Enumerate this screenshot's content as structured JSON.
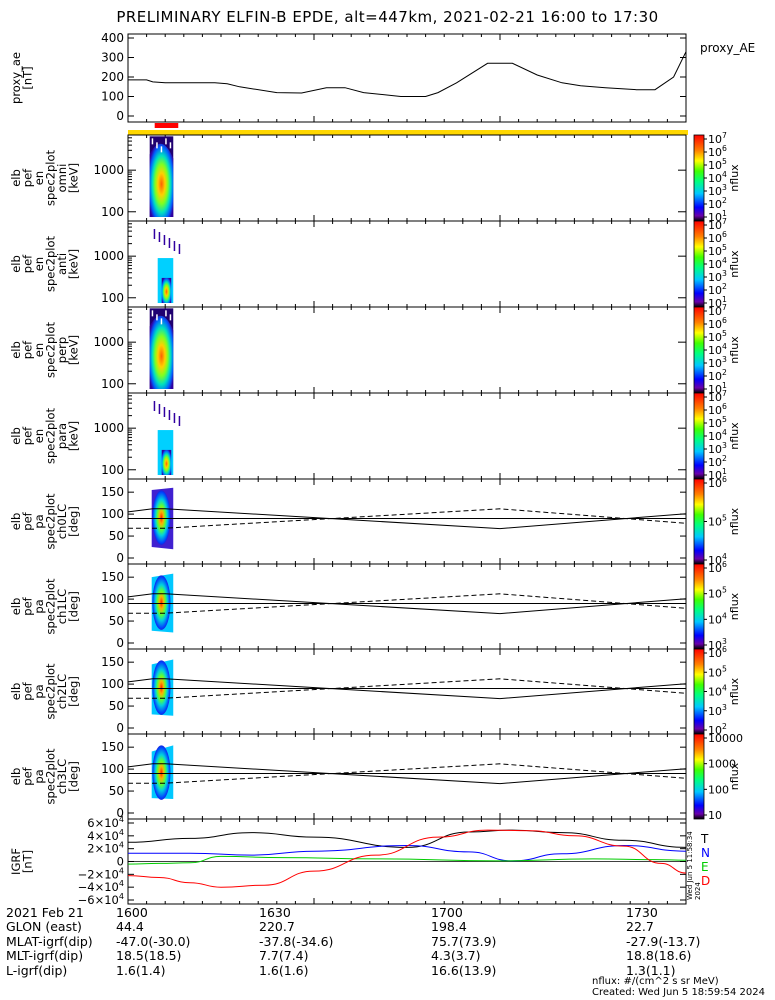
{
  "title": "PRELIMINARY ELFIN-B EPDE, alt=447km, 2021-02-21 16:00 to 17:30",
  "colors": {
    "yellow_bar": "#ffd700",
    "red_bar": "#ff0000",
    "T": "#000000",
    "N": "#0000ff",
    "E": "#00cc00",
    "D": "#ff0000"
  },
  "panels": [
    {
      "name": "proxy_ae",
      "ylabel": [
        "proxy_ae",
        "[nT]"
      ],
      "right_label": "proxy_AE"
    },
    {
      "name": "omni",
      "ylabel": [
        "elb",
        "pef",
        "en",
        "spec2plot",
        "omni",
        "[keV]"
      ],
      "cbar_label": "nflux"
    },
    {
      "name": "anti",
      "ylabel": [
        "elb",
        "pef",
        "en",
        "spec2plot",
        "anti",
        "[keV]"
      ],
      "cbar_label": "nflux"
    },
    {
      "name": "perp",
      "ylabel": [
        "elb",
        "pef",
        "en",
        "spec2plot",
        "perp",
        "[keV]"
      ],
      "cbar_label": "nflux"
    },
    {
      "name": "para",
      "ylabel": [
        "elb",
        "pef",
        "en",
        "spec2plot",
        "para",
        "[keV]"
      ],
      "cbar_label": "nflux"
    },
    {
      "name": "ch0LC",
      "ylabel": [
        "elb",
        "pef",
        "pa",
        "spec2plot",
        "ch0LC",
        "[deg]"
      ],
      "cbar_label": "nflux"
    },
    {
      "name": "ch1LC",
      "ylabel": [
        "elb",
        "pef",
        "pa",
        "spec2plot",
        "ch1LC",
        "[deg]"
      ],
      "cbar_label": "nflux"
    },
    {
      "name": "ch2LC",
      "ylabel": [
        "elb",
        "pef",
        "pa",
        "spec2plot",
        "ch2LC",
        "[deg]"
      ],
      "cbar_label": "nflux"
    },
    {
      "name": "ch3LC",
      "ylabel": [
        "elb",
        "pef",
        "pa",
        "spec2plot",
        "ch3LC",
        "[deg]"
      ],
      "cbar_label": "nflux"
    },
    {
      "name": "igrf",
      "ylabel": [
        "IGRF",
        "[nT]"
      ],
      "legend": [
        "T",
        "N",
        "E",
        "D"
      ]
    }
  ],
  "chart_data": {
    "type": "line",
    "x_range_min": [
      0,
      90
    ],
    "x_ticks_min": [
      0,
      30,
      60,
      90
    ],
    "proxy_ae": {
      "ylim": [
        0,
        400
      ],
      "yticks": [
        "0",
        "100",
        "200",
        "300",
        "400"
      ],
      "x": [
        0,
        3,
        4,
        6,
        10,
        14,
        16,
        18,
        24,
        28,
        32,
        35,
        38,
        44,
        48,
        50,
        53,
        58,
        62,
        66,
        70,
        73,
        77,
        82,
        85,
        88,
        90
      ],
      "y": [
        185,
        185,
        175,
        170,
        170,
        170,
        165,
        150,
        120,
        118,
        145,
        145,
        120,
        100,
        100,
        120,
        170,
        270,
        270,
        210,
        170,
        155,
        145,
        135,
        135,
        200,
        330
      ]
    },
    "energy_spectrograms": {
      "ylim_keV": [
        60,
        7000
      ],
      "yticks": [
        "100",
        "1000"
      ],
      "omni_cbar": {
        "ticks": [
          "10^1",
          "10^2",
          "10^3",
          "10^4",
          "10^5",
          "10^6",
          "10^7"
        ]
      },
      "anti_cbar": {
        "ticks": [
          "10^1",
          "10^2",
          "10^3",
          "10^4",
          "10^5",
          "10^6",
          "10^7"
        ]
      },
      "perp_cbar": {
        "ticks": [
          "10^1",
          "10^2",
          "10^3",
          "10^4",
          "10^5",
          "10^6",
          "10^7"
        ]
      },
      "para_cbar": {
        "ticks": [
          "10^1",
          "10^2",
          "10^3",
          "10^4",
          "10^5",
          "10^6",
          "10^7"
        ]
      },
      "data_interval_min": [
        3.5,
        7.3
      ]
    },
    "pitch_angle_spectrograms": {
      "ylim_deg": [
        0,
        180
      ],
      "yticks": [
        "0",
        "50",
        "100",
        "150"
      ],
      "solid_line_deg": {
        "x": [
          0,
          4,
          6,
          60,
          90
        ],
        "y": [
          105,
          112,
          112,
          67,
          101
        ]
      },
      "dashed_line_deg": {
        "x": [
          0,
          4,
          6,
          60,
          90
        ],
        "y": [
          68,
          68,
          68,
          112,
          79
        ]
      },
      "ref_line_deg": 90,
      "ch0_cbar": {
        "ticks": [
          "10^4",
          "10^5",
          "10^6"
        ]
      },
      "ch1_cbar": {
        "ticks": [
          "10^3",
          "10^4",
          "10^5",
          "10^6"
        ]
      },
      "ch2_cbar": {
        "ticks": [
          "10^2",
          "10^3",
          "10^4",
          "10^5",
          "10^6"
        ]
      },
      "ch3_cbar": {
        "ticks": [
          "10",
          "100",
          "1000",
          "10000"
        ]
      }
    },
    "igrf": {
      "ylim": [
        -60000,
        60000
      ],
      "yticks": [
        "6×10^4",
        "4×10^4",
        "2×10^4",
        "0",
        "−2×10^4",
        "−4×10^4",
        "−6×10^4"
      ],
      "series": [
        {
          "name": "T",
          "x": [
            0,
            10,
            20,
            30,
            45,
            55,
            62,
            70,
            80,
            90
          ],
          "y": [
            30000,
            36000,
            45000,
            38000,
            22000,
            46000,
            49000,
            45000,
            33000,
            22000
          ]
        },
        {
          "name": "N",
          "x": [
            0,
            10,
            20,
            30,
            45,
            55,
            62,
            70,
            80,
            90
          ],
          "y": [
            13000,
            13000,
            10000,
            16000,
            25000,
            15000,
            1000,
            12000,
            25000,
            16000
          ]
        },
        {
          "name": "E",
          "x": [
            0,
            5,
            10,
            15,
            25,
            40,
            60,
            75,
            85,
            90
          ],
          "y": [
            -4000,
            -3000,
            -2000,
            8000,
            6000,
            4000,
            1000,
            4000,
            3000,
            2000
          ]
        },
        {
          "name": "D",
          "x": [
            0,
            5,
            10,
            15,
            22,
            30,
            40,
            50,
            58,
            65,
            72,
            80,
            86,
            90
          ],
          "y": [
            -22000,
            -25000,
            -33000,
            -40000,
            -37000,
            -15000,
            10000,
            38000,
            49000,
            48000,
            40000,
            24000,
            -3000,
            -18000
          ]
        }
      ]
    }
  },
  "footer": {
    "rows": [
      [
        "2021 Feb 21",
        "1600",
        "1630",
        "1700",
        "1730"
      ],
      [
        "GLON (east)",
        "44.4",
        "220.7",
        "198.4",
        "22.7"
      ],
      [
        "MLAT-igrf(dip)",
        "-47.0(-30.0)",
        "-37.8(-34.6)",
        "75.7(73.9)",
        "-27.9(-13.7)"
      ],
      [
        "MLT-igrf(dip)",
        "18.5(18.5)",
        "7.7(7.4)",
        "4.3(3.7)",
        "18.8(18.6)"
      ],
      [
        "L-igrf(dip)",
        "1.6(1.4)",
        "1.6(1.6)",
        "16.6(13.9)",
        "1.3(1.1)"
      ]
    ],
    "units_note": "nflux: #/(cm^2 s sr MeV)",
    "created": "Created: Wed Jun  5 18:59:54 2024",
    "side_stamp": "Wed Jun  5 11:58:34 2024"
  }
}
